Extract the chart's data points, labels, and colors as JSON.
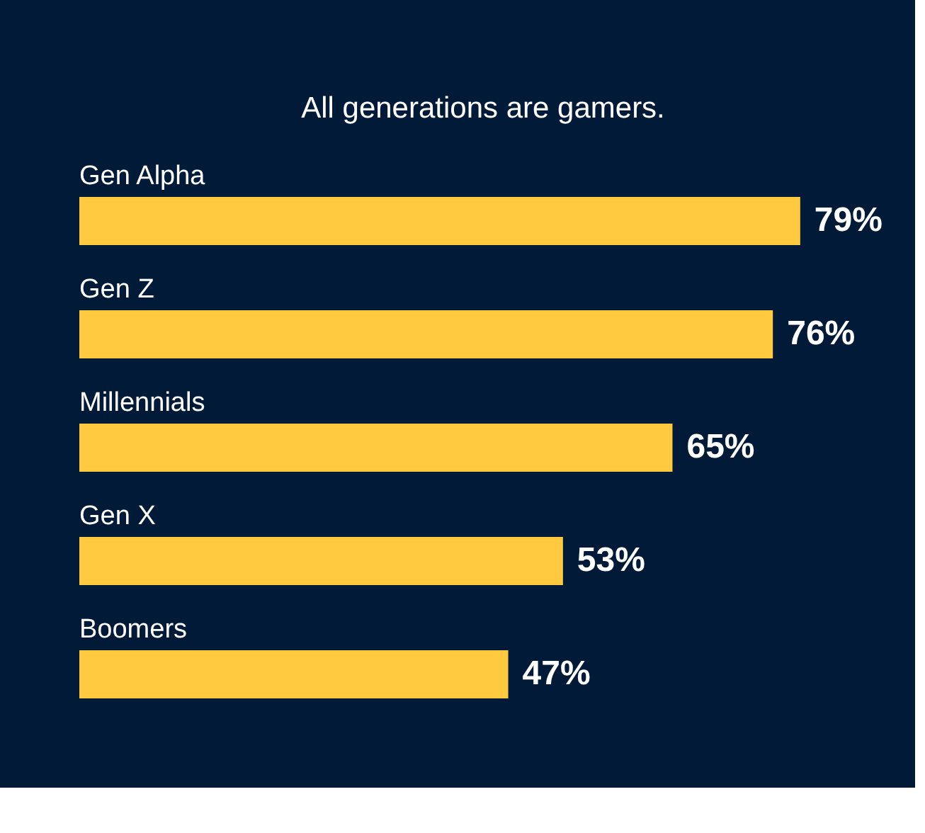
{
  "chart_data": {
    "type": "bar",
    "orientation": "horizontal",
    "title": "All generations are gamers.",
    "categories": [
      "Gen Alpha",
      "Gen Z",
      "Millennials",
      "Gen X",
      "Boomers"
    ],
    "values": [
      79,
      76,
      65,
      53,
      47
    ],
    "value_labels": [
      "79%",
      "76%",
      "65%",
      "53%",
      "47%"
    ],
    "color": "#ffc940"
  }
}
